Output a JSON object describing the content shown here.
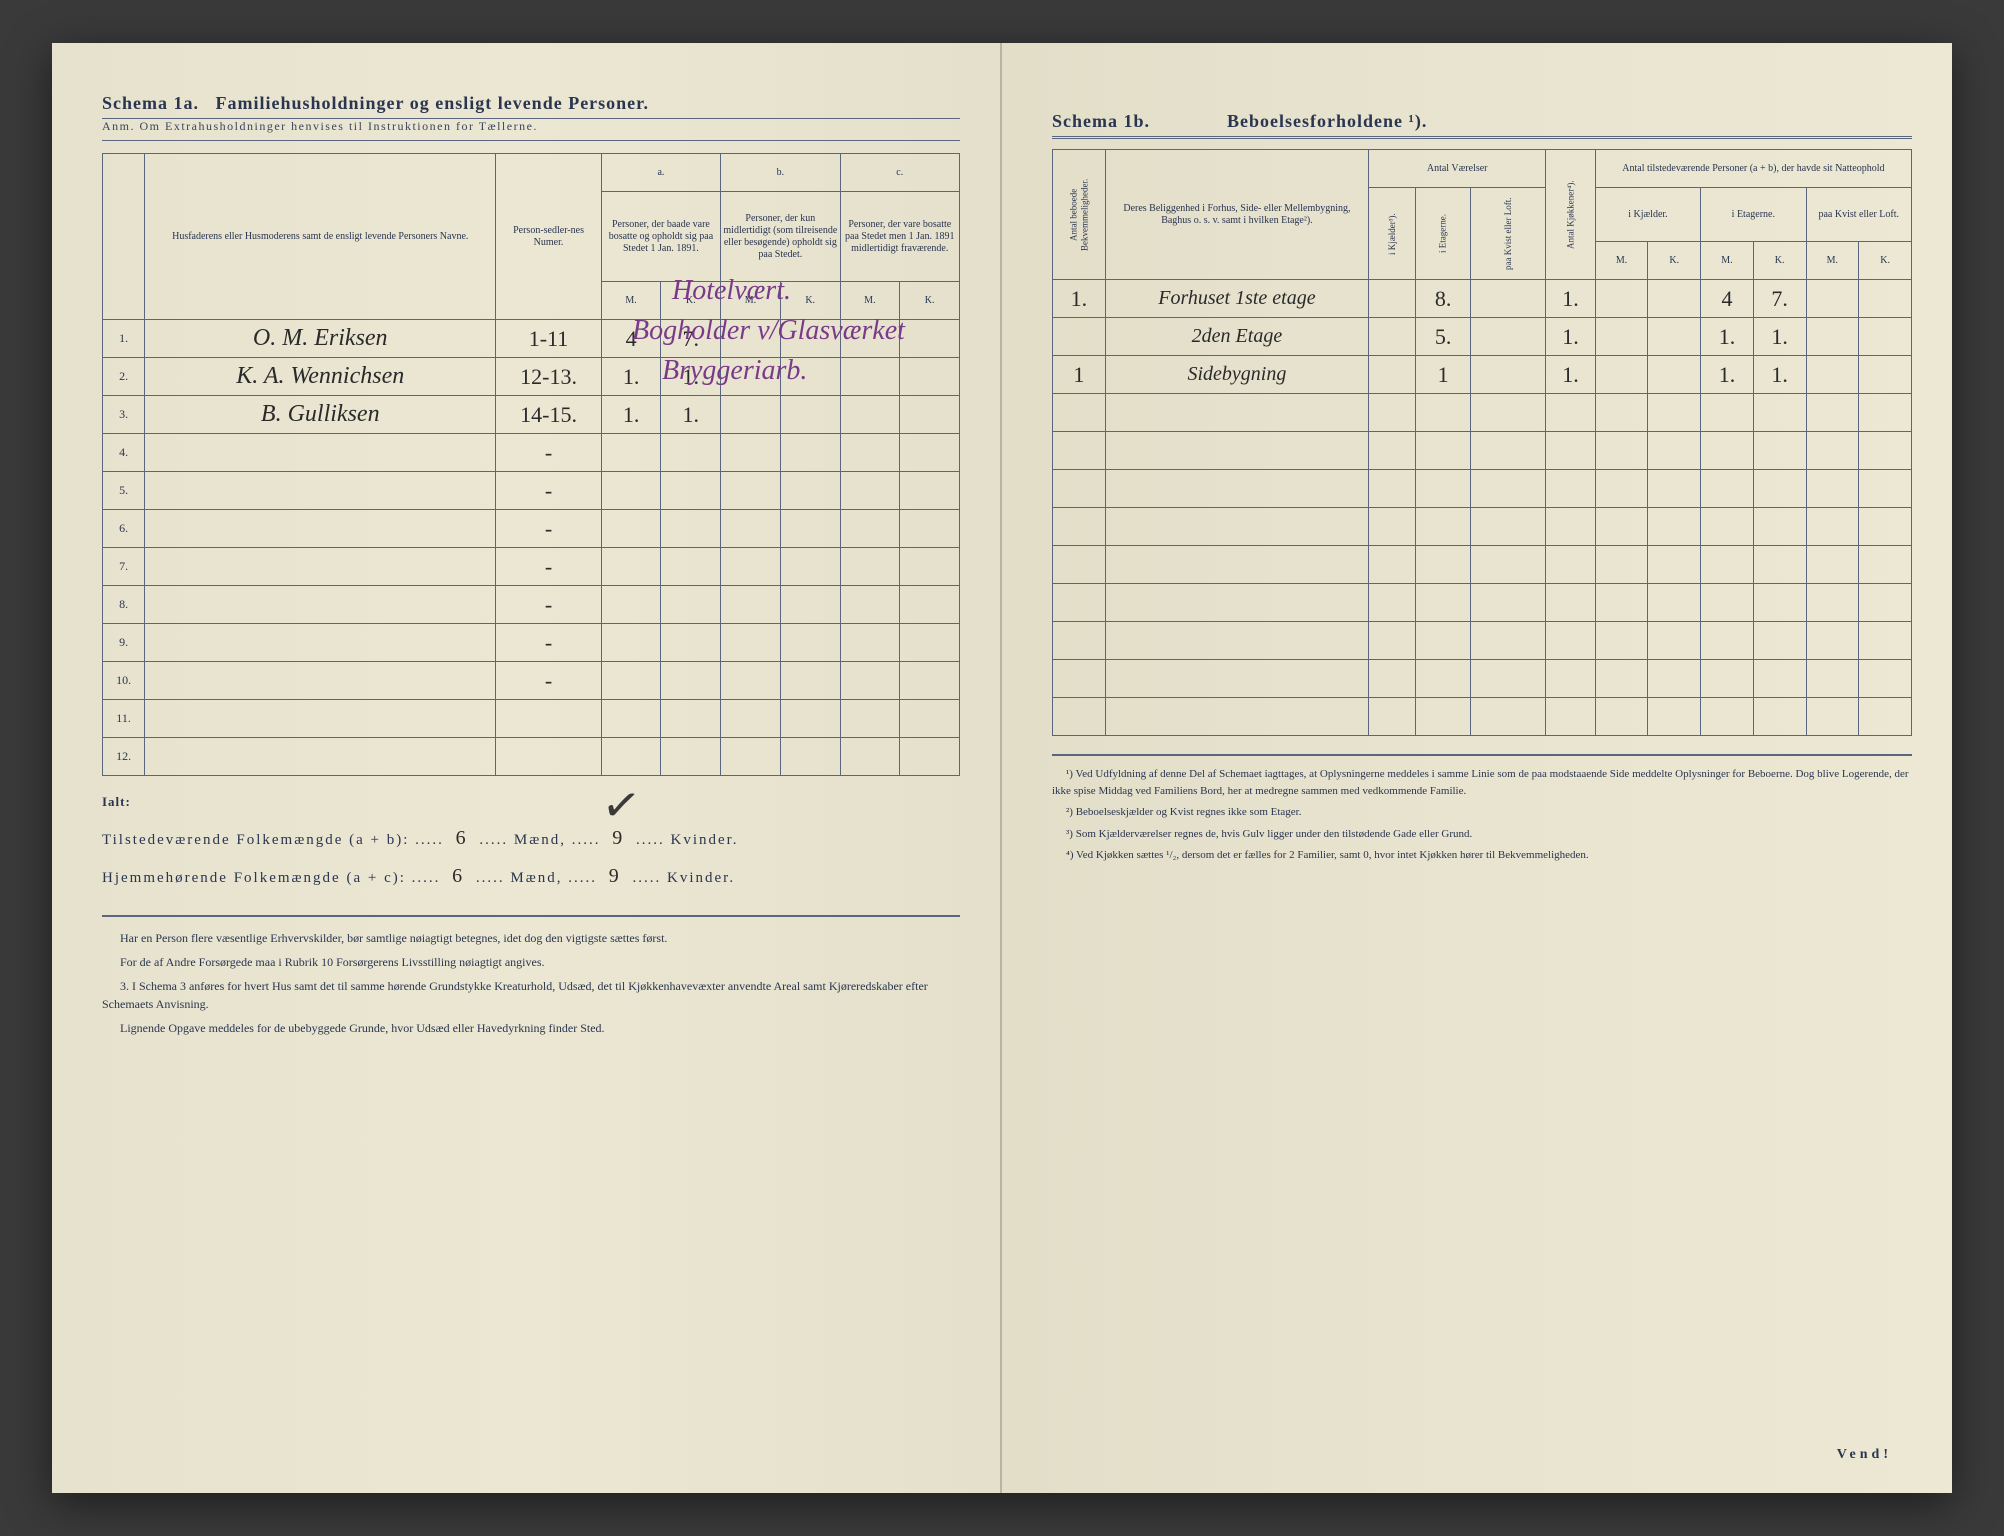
{
  "left": {
    "schema_label": "Schema 1a.",
    "schema_title": "Familiehusholdninger og ensligt levende Personer.",
    "anm": "Anm. Om Extrahusholdninger henvises til Instruktionen for Tællerne.",
    "col_name": "Husfaderens eller Husmoderens samt de ensligt levende Personers Navne.",
    "col_numer": "Person-sedler-nes Numer.",
    "group_a": "a.",
    "group_b": "b.",
    "group_c": "c.",
    "col_a": "Personer, der baade vare bosatte og opholdt sig paa Stedet 1 Jan. 1891.",
    "col_b": "Personer, der kun midlertidigt (som tilreisende eller besøgende) opholdt sig paa Stedet.",
    "col_c": "Personer, der vare bosatte paa Stedet men 1 Jan. 1891 midlertidigt fraværende.",
    "M": "M.",
    "K": "K.",
    "rows": [
      {
        "n": "1.",
        "name": "O. M. Eriksen",
        "numer": "1-11",
        "aM": "4",
        "aK": "7.",
        "occ": "Hotelvært."
      },
      {
        "n": "2.",
        "name": "K. A. Wennichsen",
        "numer": "12-13.",
        "aM": "1.",
        "aK": "1.",
        "occ": "Bogholder v/Glasværket"
      },
      {
        "n": "3.",
        "name": "B. Gulliksen",
        "numer": "14-15.",
        "aM": "1.",
        "aK": "1.",
        "occ": "Bryggeriarb."
      },
      {
        "n": "4.",
        "name": "",
        "numer": "-"
      },
      {
        "n": "5.",
        "name": "",
        "numer": "-"
      },
      {
        "n": "6.",
        "name": "",
        "numer": "-"
      },
      {
        "n": "7.",
        "name": "",
        "numer": "-"
      },
      {
        "n": "8.",
        "name": "",
        "numer": "-"
      },
      {
        "n": "9.",
        "name": "",
        "numer": "-"
      },
      {
        "n": "10.",
        "name": "",
        "numer": "-"
      },
      {
        "n": "11.",
        "name": "",
        "numer": ""
      },
      {
        "n": "12.",
        "name": "",
        "numer": ""
      }
    ],
    "ialt": "Ialt:",
    "tot_line1_pre": "Tilstedeværende Folkemængde (a + b): .....",
    "tot_line1_m": "6",
    "tot_line1_mid": "..... Mænd, .....",
    "tot_line1_k": "9",
    "tot_line1_end": "..... Kvinder.",
    "tot_line2_pre": "Hjemmehørende Folkemængde (a + c): .....",
    "tot_line2_m": "6",
    "tot_line2_mid": "..... Mænd, .....",
    "tot_line2_k": "9",
    "tot_line2_end": "..... Kvinder.",
    "footer_p1": "Har en Person flere væsentlige Erhvervskilder, bør samtlige nøiagtigt betegnes, idet dog den vigtigste sættes først.",
    "footer_p2": "For de af Andre Forsørgede maa i Rubrik 10 Forsørgerens Livsstilling nøiagtigt angives.",
    "footer_p3": "3. I Schema 3 anføres for hvert Hus samt det til samme hørende Grundstykke Kreaturhold, Udsæd, det til Kjøkkenhavevæxter anvendte Areal samt Kjøreredskaber efter Schemaets Anvisning.",
    "footer_p4": "Lignende Opgave meddeles for de ubebyggede Grunde, hvor Udsæd eller Havedyrkning finder Sted."
  },
  "right": {
    "schema_label": "Schema 1b.",
    "schema_title": "Beboelsesforholdene ¹).",
    "col_antal_bekv": "Antal beboede Bekvemmeligheder.",
    "col_belig": "Deres Beliggenhed i Forhus, Side- eller Mellembygning, Baghus o. s. v. samt i hvilken Etage²).",
    "grp_vaerelser": "Antal Værelser",
    "col_kjaelder": "i Kjælder³).",
    "col_etagerne": "i Etagerne.",
    "col_kvist": "paa Kvist eller Loft.",
    "col_kjokkener": "Antal Kjøkkener⁴).",
    "grp_personer": "Antal tilstedeværende Personer (a + b), der havde sit Natteophold",
    "col_p_kjael": "i Kjælder.",
    "col_p_etag": "i Etagerne.",
    "col_p_kvist": "paa Kvist eller Loft.",
    "M": "M.",
    "K": "K.",
    "rows": [
      {
        "bekv": "1.",
        "belig": "Forhuset 1ste etage",
        "etag": "8.",
        "kjok": "1.",
        "pM": "4",
        "pK": "7."
      },
      {
        "bekv": "",
        "belig": "2den Etage",
        "etag": "5.",
        "kjok": "1.",
        "pM": "1.",
        "pK": "1."
      },
      {
        "bekv": "1",
        "belig": "Sidebygning",
        "etag": "1",
        "kjok": "1.",
        "pM": "1.",
        "pK": "1."
      }
    ],
    "fn1": "¹) Ved Udfyldning af denne Del af Schemaet iagttages, at Oplysningerne meddeles i samme Linie som de paa modstaaende Side meddelte Oplysninger for Beboerne. Dog blive Logerende, der ikke spise Middag ved Familiens Bord, her at medregne sammen med vedkommende Familie.",
    "fn2": "²) Beboelseskjælder og Kvist regnes ikke som Etager.",
    "fn3": "³) Som Kjælderværelser regnes de, hvis Gulv ligger under den tilstødende Gade eller Grund.",
    "fn4": "⁴) Ved Kjøkken sættes ¹/₂, dersom det er fælles for 2 Familier, samt 0, hvor intet Kjøkken hører til Bekvemmeligheden.",
    "vend": "Vend!"
  }
}
